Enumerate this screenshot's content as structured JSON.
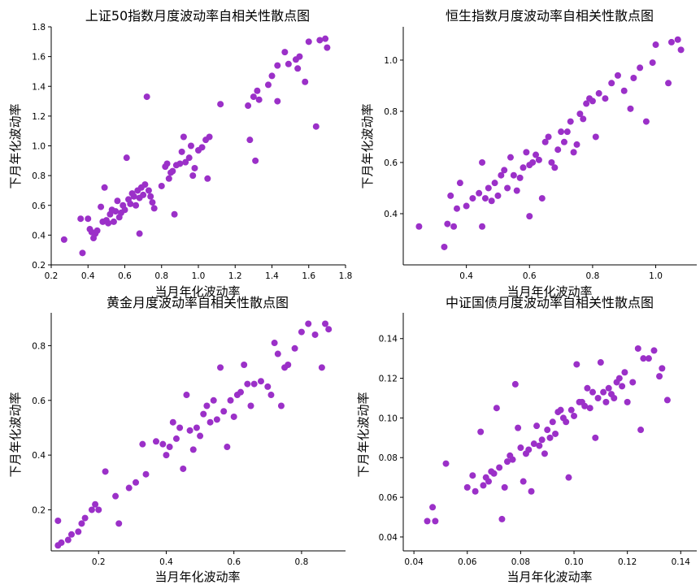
{
  "chart_data": [
    {
      "type": "scatter",
      "title": "上证50指数月度波动率自相关性散点图",
      "xlabel": "当月年化波动率",
      "ylabel": "下月年化波动率",
      "xlim": [
        0.2,
        1.8
      ],
      "ylim": [
        0.2,
        1.8
      ],
      "xticks": [
        "0.2",
        "0.4",
        "0.6",
        "0.8",
        "1.0",
        "1.2",
        "1.4",
        "1.6",
        "1.8"
      ],
      "yticks": [
        "0.2",
        "0.4",
        "0.6",
        "0.8",
        "1.0",
        "1.2",
        "1.4",
        "1.6",
        "1.8"
      ],
      "grid": false,
      "color": "#9b30c8",
      "points": [
        [
          0.27,
          0.37
        ],
        [
          0.36,
          0.51
        ],
        [
          0.37,
          0.28
        ],
        [
          0.4,
          0.51
        ],
        [
          0.41,
          0.44
        ],
        [
          0.42,
          0.42
        ],
        [
          0.43,
          0.38
        ],
        [
          0.44,
          0.41
        ],
        [
          0.45,
          0.43
        ],
        [
          0.47,
          0.59
        ],
        [
          0.48,
          0.49
        ],
        [
          0.49,
          0.72
        ],
        [
          0.5,
          0.5
        ],
        [
          0.51,
          0.48
        ],
        [
          0.52,
          0.54
        ],
        [
          0.53,
          0.57
        ],
        [
          0.54,
          0.49
        ],
        [
          0.55,
          0.56
        ],
        [
          0.56,
          0.63
        ],
        [
          0.57,
          0.52
        ],
        [
          0.58,
          0.55
        ],
        [
          0.59,
          0.6
        ],
        [
          0.6,
          0.57
        ],
        [
          0.61,
          0.92
        ],
        [
          0.62,
          0.64
        ],
        [
          0.63,
          0.61
        ],
        [
          0.64,
          0.68
        ],
        [
          0.65,
          0.66
        ],
        [
          0.66,
          0.6
        ],
        [
          0.67,
          0.7
        ],
        [
          0.68,
          0.65
        ],
        [
          0.69,
          0.72
        ],
        [
          0.7,
          0.67
        ],
        [
          0.71,
          0.74
        ],
        [
          0.72,
          1.33
        ],
        [
          0.73,
          0.7
        ],
        [
          0.74,
          0.66
        ],
        [
          0.75,
          0.62
        ],
        [
          0.76,
          0.58
        ],
        [
          0.68,
          0.41
        ],
        [
          0.8,
          0.73
        ],
        [
          0.82,
          0.86
        ],
        [
          0.83,
          0.88
        ],
        [
          0.84,
          0.78
        ],
        [
          0.85,
          0.82
        ],
        [
          0.86,
          0.83
        ],
        [
          0.87,
          0.54
        ],
        [
          0.88,
          0.87
        ],
        [
          0.9,
          0.88
        ],
        [
          0.91,
          0.96
        ],
        [
          0.92,
          1.06
        ],
        [
          0.93,
          0.89
        ],
        [
          0.95,
          0.92
        ],
        [
          0.96,
          1.0
        ],
        [
          0.97,
          0.8
        ],
        [
          0.98,
          0.85
        ],
        [
          1.0,
          0.97
        ],
        [
          1.02,
          0.99
        ],
        [
          1.04,
          1.04
        ],
        [
          1.05,
          0.78
        ],
        [
          1.06,
          1.06
        ],
        [
          1.12,
          1.28
        ],
        [
          1.27,
          1.27
        ],
        [
          1.28,
          1.04
        ],
        [
          1.3,
          1.33
        ],
        [
          1.31,
          0.9
        ],
        [
          1.32,
          1.37
        ],
        [
          1.33,
          1.31
        ],
        [
          1.38,
          1.41
        ],
        [
          1.4,
          1.47
        ],
        [
          1.43,
          1.54
        ],
        [
          1.43,
          1.3
        ],
        [
          1.47,
          1.63
        ],
        [
          1.49,
          1.55
        ],
        [
          1.53,
          1.58
        ],
        [
          1.54,
          1.52
        ],
        [
          1.55,
          1.6
        ],
        [
          1.58,
          1.43
        ],
        [
          1.6,
          1.7
        ],
        [
          1.64,
          1.13
        ],
        [
          1.66,
          1.71
        ],
        [
          1.69,
          1.72
        ],
        [
          1.7,
          1.66
        ]
      ]
    },
    {
      "type": "scatter",
      "title": "恒生指数月度波动率自相关性散点图",
      "xlabel": "当月年化波动率",
      "ylabel": "下月年化波动率",
      "xlim": [
        0.2,
        1.13
      ],
      "ylim": [
        0.2,
        1.13
      ],
      "xticks": [
        "0.4",
        "0.6",
        "0.8",
        "1.0"
      ],
      "yticks": [
        "0.4",
        "0.6",
        "0.8",
        "1.0"
      ],
      "grid": false,
      "color": "#9b30c8",
      "points": [
        [
          0.25,
          0.35
        ],
        [
          0.33,
          0.27
        ],
        [
          0.34,
          0.36
        ],
        [
          0.35,
          0.47
        ],
        [
          0.36,
          0.35
        ],
        [
          0.37,
          0.42
        ],
        [
          0.38,
          0.52
        ],
        [
          0.4,
          0.43
        ],
        [
          0.42,
          0.46
        ],
        [
          0.44,
          0.48
        ],
        [
          0.45,
          0.6
        ],
        [
          0.45,
          0.35
        ],
        [
          0.46,
          0.46
        ],
        [
          0.47,
          0.5
        ],
        [
          0.48,
          0.45
        ],
        [
          0.49,
          0.52
        ],
        [
          0.5,
          0.47
        ],
        [
          0.51,
          0.55
        ],
        [
          0.52,
          0.57
        ],
        [
          0.53,
          0.5
        ],
        [
          0.54,
          0.62
        ],
        [
          0.55,
          0.55
        ],
        [
          0.56,
          0.49
        ],
        [
          0.57,
          0.54
        ],
        [
          0.58,
          0.58
        ],
        [
          0.59,
          0.64
        ],
        [
          0.6,
          0.59
        ],
        [
          0.6,
          0.39
        ],
        [
          0.61,
          0.6
        ],
        [
          0.62,
          0.63
        ],
        [
          0.63,
          0.61
        ],
        [
          0.64,
          0.46
        ],
        [
          0.65,
          0.68
        ],
        [
          0.66,
          0.7
        ],
        [
          0.67,
          0.6
        ],
        [
          0.68,
          0.58
        ],
        [
          0.69,
          0.65
        ],
        [
          0.7,
          0.72
        ],
        [
          0.71,
          0.68
        ],
        [
          0.72,
          0.72
        ],
        [
          0.73,
          0.76
        ],
        [
          0.74,
          0.64
        ],
        [
          0.75,
          0.67
        ],
        [
          0.76,
          0.79
        ],
        [
          0.77,
          0.77
        ],
        [
          0.78,
          0.83
        ],
        [
          0.79,
          0.85
        ],
        [
          0.8,
          0.84
        ],
        [
          0.81,
          0.7
        ],
        [
          0.82,
          0.87
        ],
        [
          0.84,
          0.85
        ],
        [
          0.86,
          0.91
        ],
        [
          0.88,
          0.94
        ],
        [
          0.9,
          0.88
        ],
        [
          0.92,
          0.81
        ],
        [
          0.93,
          0.93
        ],
        [
          0.95,
          0.97
        ],
        [
          0.97,
          0.76
        ],
        [
          0.99,
          0.99
        ],
        [
          1.0,
          1.06
        ],
        [
          1.04,
          0.91
        ],
        [
          1.05,
          1.07
        ],
        [
          1.07,
          1.08
        ],
        [
          1.08,
          1.04
        ]
      ]
    },
    {
      "type": "scatter",
      "title": "黄金月度波动率自相关性散点图",
      "xlabel": "当月年化波动率",
      "ylabel": "下月年化波动率",
      "xlim": [
        0.06,
        0.93
      ],
      "ylim": [
        0.05,
        0.92
      ],
      "xticks": [
        "0.2",
        "0.4",
        "0.6",
        "0.8"
      ],
      "yticks": [
        "0.2",
        "0.4",
        "0.6",
        "0.8"
      ],
      "grid": false,
      "color": "#9b30c8",
      "points": [
        [
          0.08,
          0.07
        ],
        [
          0.08,
          0.16
        ],
        [
          0.09,
          0.08
        ],
        [
          0.11,
          0.09
        ],
        [
          0.12,
          0.11
        ],
        [
          0.14,
          0.12
        ],
        [
          0.15,
          0.15
        ],
        [
          0.16,
          0.17
        ],
        [
          0.18,
          0.2
        ],
        [
          0.19,
          0.22
        ],
        [
          0.2,
          0.2
        ],
        [
          0.22,
          0.34
        ],
        [
          0.25,
          0.25
        ],
        [
          0.26,
          0.15
        ],
        [
          0.29,
          0.28
        ],
        [
          0.31,
          0.3
        ],
        [
          0.33,
          0.44
        ],
        [
          0.34,
          0.33
        ],
        [
          0.37,
          0.45
        ],
        [
          0.39,
          0.44
        ],
        [
          0.4,
          0.4
        ],
        [
          0.41,
          0.43
        ],
        [
          0.42,
          0.52
        ],
        [
          0.43,
          0.46
        ],
        [
          0.44,
          0.5
        ],
        [
          0.45,
          0.35
        ],
        [
          0.46,
          0.62
        ],
        [
          0.47,
          0.49
        ],
        [
          0.48,
          0.42
        ],
        [
          0.49,
          0.5
        ],
        [
          0.5,
          0.47
        ],
        [
          0.51,
          0.55
        ],
        [
          0.52,
          0.58
        ],
        [
          0.53,
          0.52
        ],
        [
          0.54,
          0.6
        ],
        [
          0.55,
          0.53
        ],
        [
          0.56,
          0.72
        ],
        [
          0.57,
          0.56
        ],
        [
          0.58,
          0.43
        ],
        [
          0.59,
          0.6
        ],
        [
          0.6,
          0.54
        ],
        [
          0.61,
          0.62
        ],
        [
          0.62,
          0.63
        ],
        [
          0.63,
          0.73
        ],
        [
          0.64,
          0.66
        ],
        [
          0.65,
          0.58
        ],
        [
          0.66,
          0.66
        ],
        [
          0.68,
          0.67
        ],
        [
          0.7,
          0.65
        ],
        [
          0.71,
          0.62
        ],
        [
          0.72,
          0.81
        ],
        [
          0.73,
          0.77
        ],
        [
          0.74,
          0.58
        ],
        [
          0.75,
          0.72
        ],
        [
          0.76,
          0.73
        ],
        [
          0.78,
          0.79
        ],
        [
          0.8,
          0.85
        ],
        [
          0.82,
          0.88
        ],
        [
          0.84,
          0.84
        ],
        [
          0.86,
          0.72
        ],
        [
          0.87,
          0.88
        ],
        [
          0.88,
          0.86
        ]
      ]
    },
    {
      "type": "scatter",
      "title": "中证国债月度波动率自相关性散点图",
      "xlabel": "当月年化波动率",
      "ylabel": "下月年化波动率",
      "xlim": [
        0.036,
        0.146
      ],
      "ylim": [
        0.033,
        0.153
      ],
      "xticks": [
        "0.04",
        "0.06",
        "0.08",
        "0.10",
        "0.12",
        "0.14"
      ],
      "yticks": [
        "0.04",
        "0.06",
        "0.08",
        "0.10",
        "0.12",
        "0.14"
      ],
      "grid": false,
      "color": "#9b30c8",
      "points": [
        [
          0.045,
          0.048
        ],
        [
          0.047,
          0.055
        ],
        [
          0.048,
          0.048
        ],
        [
          0.052,
          0.077
        ],
        [
          0.06,
          0.065
        ],
        [
          0.062,
          0.071
        ],
        [
          0.063,
          0.063
        ],
        [
          0.065,
          0.093
        ],
        [
          0.066,
          0.066
        ],
        [
          0.067,
          0.07
        ],
        [
          0.068,
          0.068
        ],
        [
          0.069,
          0.073
        ],
        [
          0.07,
          0.072
        ],
        [
          0.071,
          0.105
        ],
        [
          0.072,
          0.075
        ],
        [
          0.073,
          0.049
        ],
        [
          0.074,
          0.065
        ],
        [
          0.075,
          0.078
        ],
        [
          0.076,
          0.081
        ],
        [
          0.077,
          0.079
        ],
        [
          0.078,
          0.117
        ],
        [
          0.079,
          0.095
        ],
        [
          0.08,
          0.085
        ],
        [
          0.081,
          0.068
        ],
        [
          0.082,
          0.082
        ],
        [
          0.083,
          0.084
        ],
        [
          0.084,
          0.063
        ],
        [
          0.085,
          0.087
        ],
        [
          0.086,
          0.096
        ],
        [
          0.087,
          0.086
        ],
        [
          0.088,
          0.089
        ],
        [
          0.089,
          0.082
        ],
        [
          0.09,
          0.094
        ],
        [
          0.091,
          0.09
        ],
        [
          0.092,
          0.098
        ],
        [
          0.093,
          0.092
        ],
        [
          0.094,
          0.103
        ],
        [
          0.095,
          0.104
        ],
        [
          0.096,
          0.1
        ],
        [
          0.097,
          0.098
        ],
        [
          0.098,
          0.07
        ],
        [
          0.099,
          0.104
        ],
        [
          0.1,
          0.101
        ],
        [
          0.101,
          0.127
        ],
        [
          0.102,
          0.108
        ],
        [
          0.103,
          0.108
        ],
        [
          0.104,
          0.106
        ],
        [
          0.105,
          0.115
        ],
        [
          0.106,
          0.105
        ],
        [
          0.107,
          0.113
        ],
        [
          0.108,
          0.09
        ],
        [
          0.109,
          0.11
        ],
        [
          0.11,
          0.128
        ],
        [
          0.111,
          0.113
        ],
        [
          0.112,
          0.108
        ],
        [
          0.113,
          0.115
        ],
        [
          0.114,
          0.112
        ],
        [
          0.115,
          0.11
        ],
        [
          0.116,
          0.118
        ],
        [
          0.117,
          0.12
        ],
        [
          0.118,
          0.116
        ],
        [
          0.119,
          0.123
        ],
        [
          0.12,
          0.108
        ],
        [
          0.122,
          0.118
        ],
        [
          0.124,
          0.135
        ],
        [
          0.125,
          0.094
        ],
        [
          0.126,
          0.13
        ],
        [
          0.128,
          0.13
        ],
        [
          0.13,
          0.134
        ],
        [
          0.132,
          0.121
        ],
        [
          0.133,
          0.125
        ],
        [
          0.135,
          0.109
        ]
      ]
    }
  ]
}
